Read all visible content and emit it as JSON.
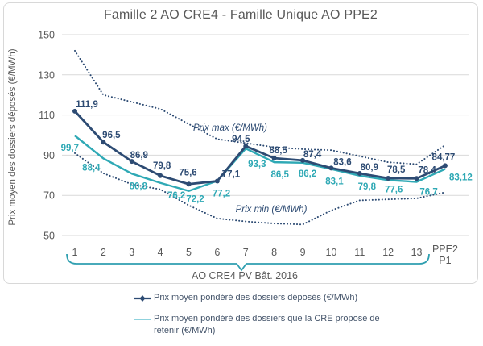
{
  "chart_data": {
    "type": "line",
    "title": "Famille 2 AO CRE4 - Famille Unique AO PPE2",
    "ylabel": "Prix moyen des dossiers déposés (€/MWh)",
    "ylim": [
      50,
      150
    ],
    "yticks": [
      150,
      130,
      110,
      90,
      70,
      50
    ],
    "grid": "horizontal",
    "legend_position": "bottom",
    "categories": [
      "1",
      "2",
      "3",
      "4",
      "5",
      "6",
      "7",
      "8",
      "9",
      "10",
      "11",
      "12",
      "13",
      "PPE2 P1"
    ],
    "x_group_bracket": {
      "label": "AO CRE4 PV Bât. 2016",
      "from_category": "1",
      "to_category": "13"
    },
    "series": [
      {
        "name": "Prix moyen pondéré des dossiers déposés (€/MWh)",
        "style": "solid_with_markers",
        "color": "#2d4b73",
        "values": [
          111.9,
          96.5,
          86.9,
          79.8,
          75.6,
          77.1,
          94.5,
          88.5,
          87.4,
          83.6,
          80.9,
          78.5,
          78.4,
          84.77
        ],
        "point_labels": [
          "111,9",
          "96,5",
          "86,9",
          "79,8",
          "75,6",
          "77,1",
          "94,5",
          "88,5",
          "87,4",
          "83,6",
          "80,9",
          "78,5",
          "78,4",
          "84,77"
        ]
      },
      {
        "name": "Prix moyen pondéré des dossiers que la CRE propose de retenir (€/MWh)",
        "style": "solid",
        "color": "#2fa9b5",
        "values": [
          99.7,
          88.4,
          80.8,
          76.2,
          72.2,
          77.2,
          93.3,
          86.5,
          86.2,
          83.1,
          79.8,
          77.6,
          76.7,
          83.12
        ],
        "point_labels": [
          "99,7",
          "88,4",
          "80,8",
          "76,2",
          "72,2",
          "77,2",
          "93,3",
          "86,5",
          "86,2",
          "83,1",
          "79,8",
          "77,6",
          "76,7",
          "83,12"
        ]
      },
      {
        "name": "Prix max (€/MWh)",
        "style": "dotted",
        "color": "#2d4b73",
        "estimated": true,
        "values": [
          142,
          120,
          116.5,
          113,
          105.5,
          98,
          96,
          94,
          93,
          92.5,
          89.5,
          86.5,
          85.5,
          95
        ]
      },
      {
        "name": "Prix min (€/MWh)",
        "style": "dotted",
        "color": "#2d4b73",
        "estimated": true,
        "values": [
          91,
          81,
          75.5,
          73,
          65,
          58.5,
          57,
          56,
          55.5,
          62.5,
          67.5,
          68,
          68.5,
          71.5
        ]
      }
    ],
    "annotations": {
      "max_label": "Prix max (€/MWh)",
      "min_label": "Prix min (€/MWh)"
    }
  },
  "colors": {
    "navy": "#2d4b73",
    "teal": "#2fa9b5",
    "legend_light_teal": "#8fd2dd",
    "bracket_teal": "#2f9fb0",
    "gridline": "#d9d9d9",
    "axis_text": "#595959",
    "legend_text": "#44546a",
    "panel_border": "#d8d8d8"
  }
}
